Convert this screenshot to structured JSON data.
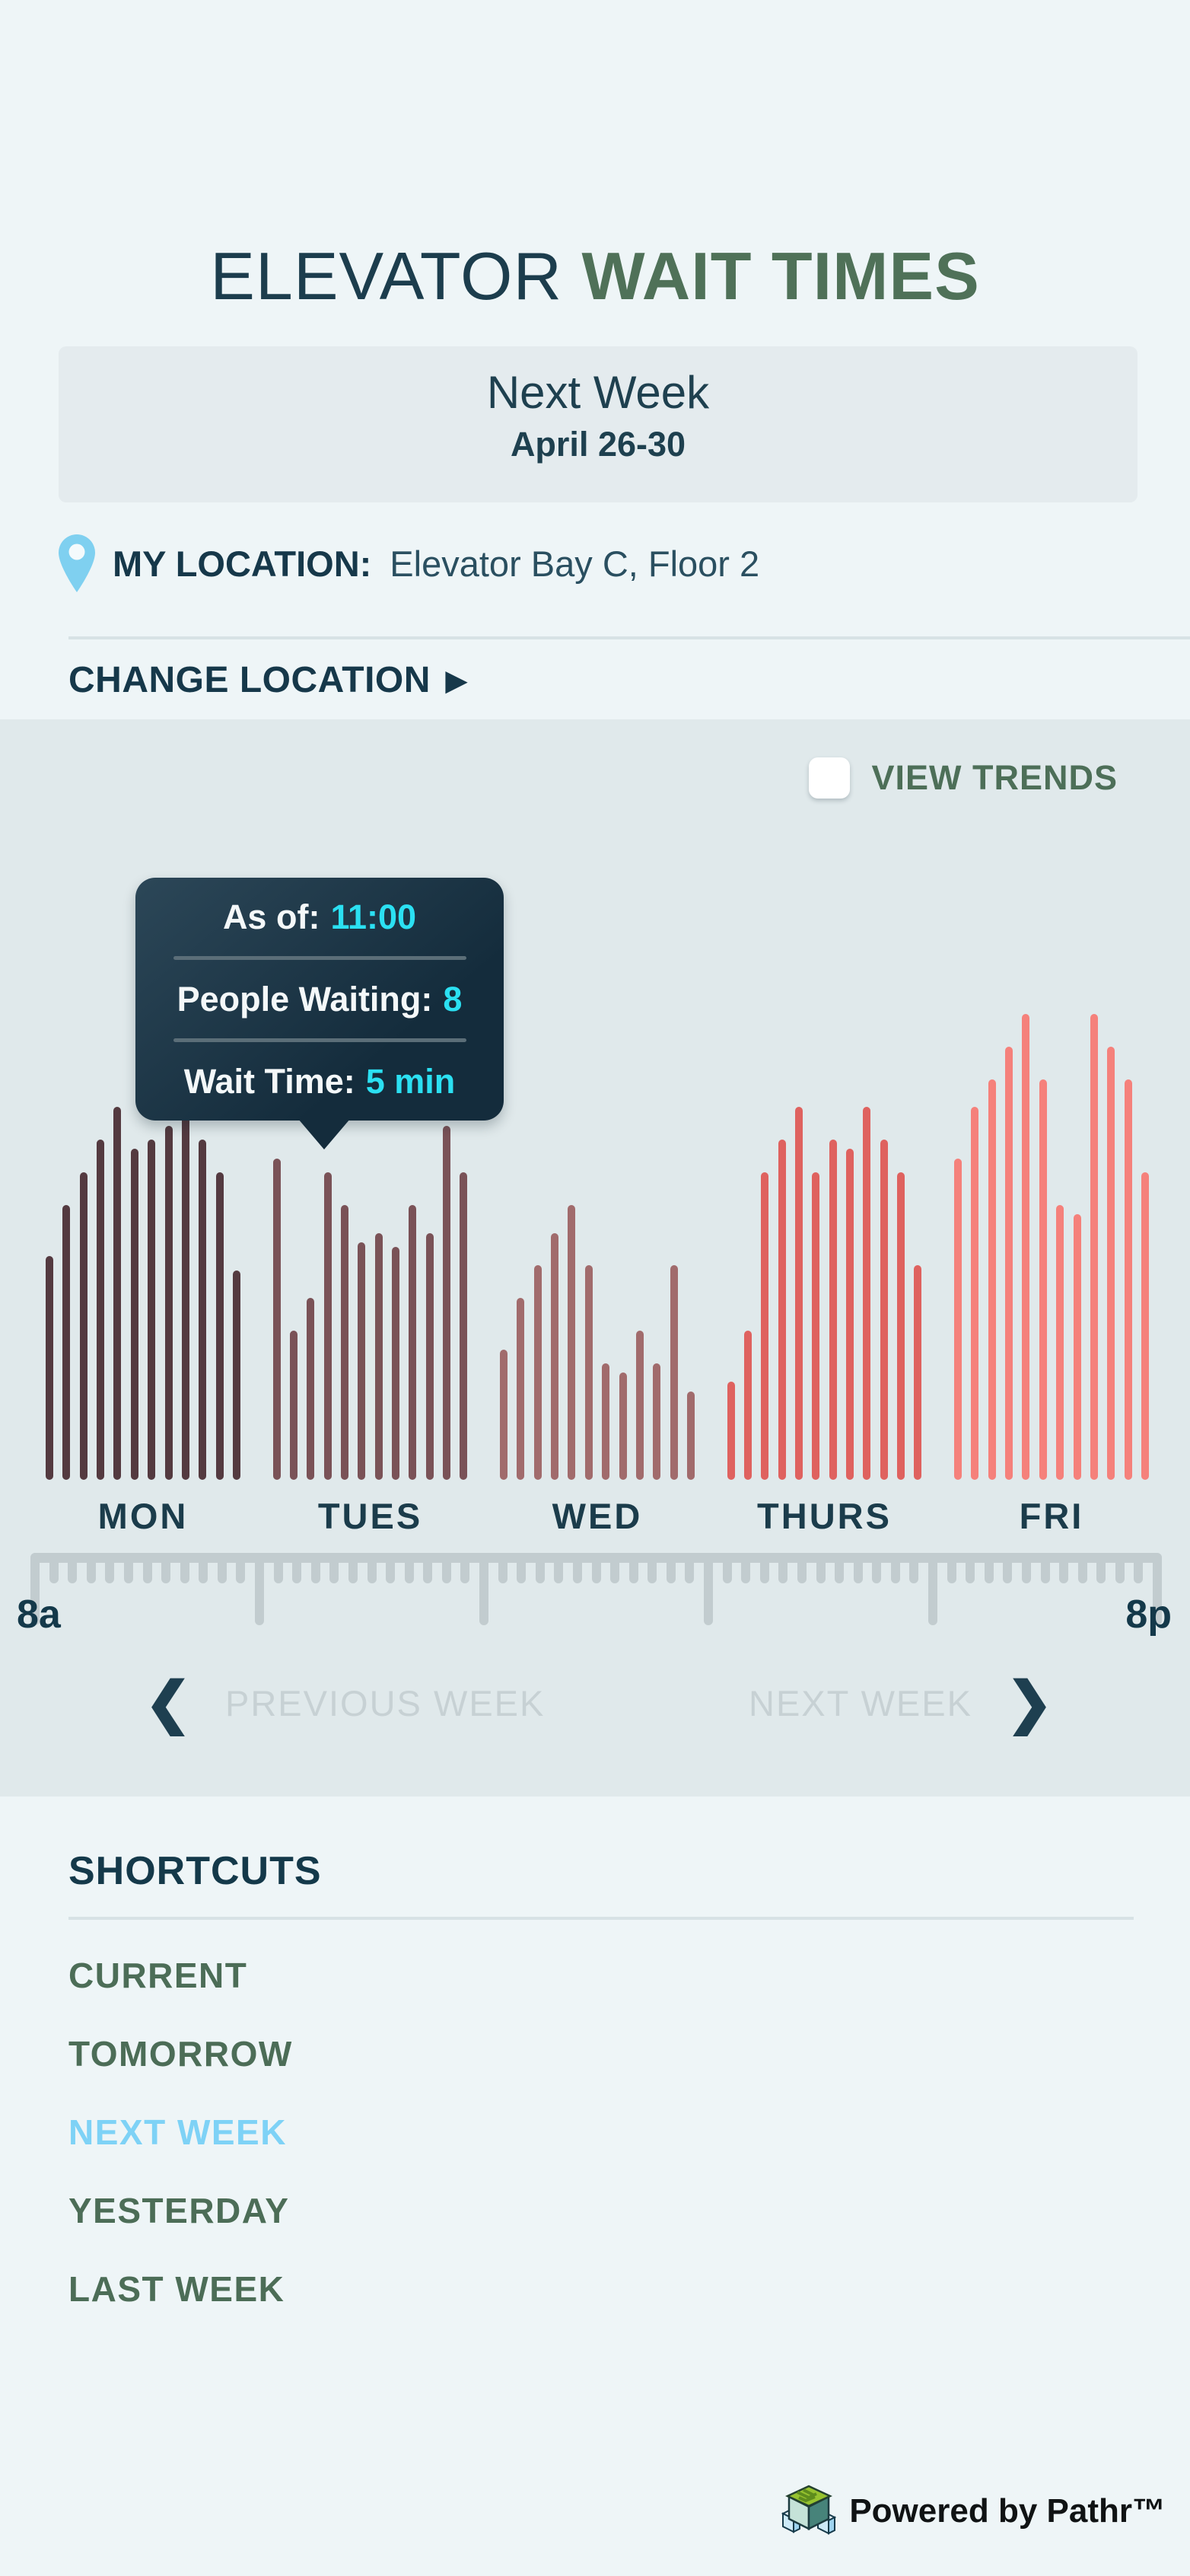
{
  "header": {
    "title_light": "ELEVATOR",
    "title_bold": "WAIT TIMES"
  },
  "period": {
    "label": "Next Week",
    "range": "April 26-30"
  },
  "location": {
    "pin_icon": "location-pin",
    "label": "MY LOCATION:",
    "value": "Elevator Bay C, Floor 2",
    "change_label": "CHANGE LOCATION",
    "change_arrow": "▶"
  },
  "trends": {
    "label": "VIEW TRENDS",
    "checked": false
  },
  "tooltip": {
    "as_of_label": "As of:",
    "as_of_value": "11:00",
    "people_label": "People Waiting:",
    "people_value": "8",
    "wait_label": "Wait Time:",
    "wait_value": "5 min",
    "accent_color": "#2be0f2"
  },
  "chart_data": {
    "type": "bar",
    "title": "Elevator wait times by day, Next Week April 26-30",
    "categories": [
      "MON",
      "TUES",
      "WED",
      "THURS",
      "FRI"
    ],
    "x_axis": {
      "start_label": "8a",
      "end_label": "8p",
      "unit": "hour of day"
    },
    "ylim": [
      0,
      1
    ],
    "grid": false,
    "legend": false,
    "series": [
      {
        "day": "MON",
        "color": "#543a40",
        "values_relative": [
          0.48,
          0.59,
          0.66,
          0.73,
          0.8,
          0.71,
          0.73,
          0.76,
          0.81,
          0.73,
          0.66,
          0.45
        ]
      },
      {
        "day": "TUES",
        "color": "#7a5257",
        "values_relative": [
          0.69,
          0.32,
          0.39,
          0.66,
          0.59,
          0.51,
          0.53,
          0.5,
          0.59,
          0.53,
          0.76,
          0.66
        ]
      },
      {
        "day": "WED",
        "color": "#a16b6c",
        "values_relative": [
          0.28,
          0.39,
          0.46,
          0.53,
          0.59,
          0.46,
          0.25,
          0.23,
          0.32,
          0.25,
          0.46,
          0.19
        ]
      },
      {
        "day": "THURS",
        "color": "#df625f",
        "values_relative": [
          0.21,
          0.32,
          0.66,
          0.73,
          0.8,
          0.66,
          0.73,
          0.71,
          0.8,
          0.73,
          0.66,
          0.46
        ]
      },
      {
        "day": "FRI",
        "color": "#f5817b",
        "values_relative": [
          0.69,
          0.8,
          0.86,
          0.93,
          1.0,
          0.86,
          0.59,
          0.57,
          1.0,
          0.93,
          0.86,
          0.66
        ]
      }
    ],
    "highlight": {
      "day": "TUES",
      "time": "11:00",
      "people_waiting": 8,
      "wait_time_min": 5
    }
  },
  "timeline": {
    "start_label": "8a",
    "end_label": "8p"
  },
  "nav": {
    "prev_chevron": "❮",
    "prev_label": "PREVIOUS WEEK",
    "next_label": "NEXT WEEK",
    "next_chevron": "❯"
  },
  "shortcuts": {
    "title": "SHORTCUTS",
    "items": [
      {
        "label": "CURRENT",
        "active": false
      },
      {
        "label": "TOMORROW",
        "active": false
      },
      {
        "label": "NEXT WEEK",
        "active": true
      },
      {
        "label": "YESTERDAY",
        "active": false
      },
      {
        "label": "LAST WEEK",
        "active": false
      }
    ],
    "active_color": "#7ed2f6"
  },
  "footer": {
    "logo_icon": "pathr-logo",
    "text": "Powered by Pathr™"
  },
  "colors": {
    "page_bg": "#eef5f7",
    "section_bg": "#e0e9eb",
    "dark_navy": "#16384a",
    "green": "#4f7158",
    "light_blue": "#7ed2f6",
    "ruler_gray": "#c2cccf",
    "nav_gray": "#c7d1d4"
  }
}
